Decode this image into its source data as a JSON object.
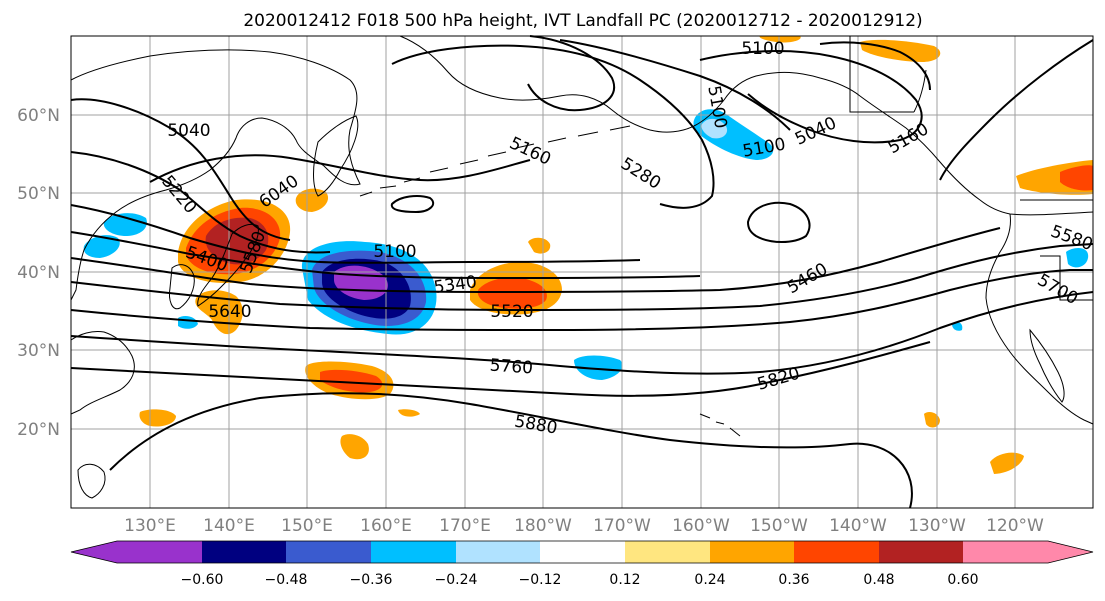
{
  "title": "2020012412 F018 500 hPa height, IVT Landfall PC (2020012712 - 2020012912)",
  "map": {
    "lat_labels": [
      "60°N",
      "50°N",
      "40°N",
      "30°N",
      "20°N"
    ],
    "lon_labels": [
      "130°E",
      "140°E",
      "150°E",
      "160°E",
      "170°E",
      "180°W",
      "170°W",
      "160°W",
      "150°W",
      "140°W",
      "130°W",
      "120°W"
    ],
    "contour_labels": [
      "5040",
      "5100",
      "5220",
      "6040",
      "5400",
      "5640",
      "5160",
      "5280",
      "5100",
      "5340",
      "5520",
      "5760",
      "5880",
      "5460",
      "5820",
      "5580",
      "5700",
      "5100",
      "5040",
      "5100",
      "5160",
      "5580"
    ]
  },
  "colorbar": {
    "tick_labels": [
      "−0.60",
      "−0.48",
      "−0.36",
      "−0.24",
      "−0.12",
      "0.12",
      "0.24",
      "0.36",
      "0.48",
      "0.60"
    ],
    "colors": [
      "#9932cc",
      "#000080",
      "#3a5bcf",
      "#00bfff",
      "#b0e2ff",
      "#ffffff",
      "#ffe680",
      "#ffa500",
      "#ff4500",
      "#b22222",
      "#ff88aa",
      "#ff88aa"
    ]
  },
  "fill_colors": {
    "purple": "#9932cc",
    "navy": "#000080",
    "blue": "#3a5bcf",
    "sky": "#00bfff",
    "lightblue": "#b0e2ff",
    "yellow": "#ffe680",
    "orange": "#ffa500",
    "redorange": "#ff4500",
    "firebrick": "#b22222"
  }
}
